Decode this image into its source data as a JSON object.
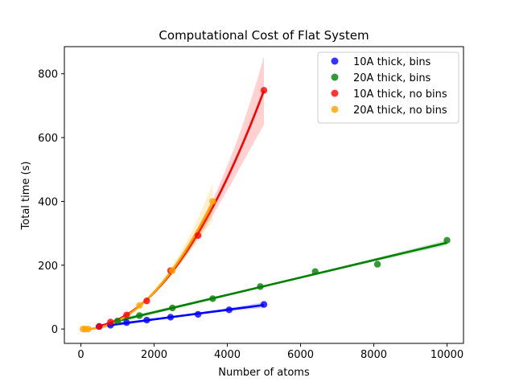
{
  "chart_data": {
    "type": "scatter",
    "title": "Computational Cost of Flat System",
    "xlabel": "Number of atoms",
    "ylabel": "Total time (s)",
    "xlim": [
      -450,
      10450
    ],
    "ylim": [
      -45,
      885
    ],
    "xticks": [
      0,
      2000,
      4000,
      6000,
      8000,
      10000
    ],
    "yticks": [
      0,
      200,
      400,
      600,
      800
    ],
    "grid": false,
    "legend_position": "top-right",
    "series": [
      {
        "name": "10A thick, bins",
        "color": "#0000ff",
        "fit": "linear",
        "points": [
          [
            500,
            8
          ],
          [
            810,
            12
          ],
          [
            1250,
            20
          ],
          [
            1800,
            28
          ],
          [
            2450,
            37
          ],
          [
            3200,
            46
          ],
          [
            4050,
            60
          ],
          [
            5000,
            77
          ]
        ]
      },
      {
        "name": "20A thick, bins",
        "color": "#008000",
        "fit": "linear",
        "points": [
          [
            1000,
            25
          ],
          [
            1600,
            42
          ],
          [
            2500,
            66
          ],
          [
            3600,
            95
          ],
          [
            4900,
            133
          ],
          [
            6400,
            180
          ],
          [
            8100,
            203
          ],
          [
            10000,
            278
          ]
        ]
      },
      {
        "name": "10A thick, no bins",
        "color": "#ff0000",
        "fit": "quadratic",
        "points": [
          [
            500,
            8
          ],
          [
            810,
            22
          ],
          [
            1250,
            44
          ],
          [
            1800,
            88
          ],
          [
            2450,
            183
          ],
          [
            3200,
            293
          ],
          [
            5000,
            748
          ]
        ]
      },
      {
        "name": "20A thick, no bins",
        "color": "#ffa500",
        "fit": "quadratic",
        "points": [
          [
            60,
            0
          ],
          [
            120,
            0
          ],
          [
            200,
            0
          ],
          [
            1600,
            74
          ],
          [
            2500,
            183
          ],
          [
            3600,
            400
          ]
        ]
      }
    ]
  }
}
